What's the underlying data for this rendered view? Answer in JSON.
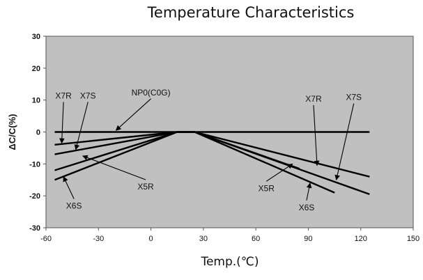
{
  "chart_data": {
    "type": "line",
    "title": "Temperature Characteristics",
    "xlabel": "Temp.(℃)",
    "ylabel": "ΔC/C(%)",
    "xlim": [
      -60,
      150
    ],
    "ylim": [
      -30,
      30
    ],
    "xticks": [
      "-60",
      "-30",
      "0",
      "30",
      "60",
      "90",
      "120",
      "150"
    ],
    "yticks": [
      "30",
      "20",
      "10",
      "0",
      "-10",
      "-20",
      "-30"
    ],
    "grid": false,
    "plot_background": "#c0c0c0",
    "line_color": "#000000",
    "series": [
      {
        "name": "NP0(C0G)",
        "points": [
          [
            -55,
            0
          ],
          [
            125,
            0
          ]
        ]
      },
      {
        "name": "X7R",
        "points": [
          [
            -55,
            -4
          ],
          [
            15,
            0
          ],
          [
            25,
            0
          ],
          [
            125,
            -14
          ]
        ]
      },
      {
        "name": "X7S",
        "points": [
          [
            -55,
            -7
          ],
          [
            15,
            0
          ],
          [
            25,
            0
          ],
          [
            125,
            -19.5
          ]
        ]
      },
      {
        "name": "X5R",
        "points": [
          [
            -55,
            -12
          ],
          [
            15,
            0
          ],
          [
            25,
            0
          ],
          [
            85,
            -11.5
          ]
        ]
      },
      {
        "name": "X6S",
        "points": [
          [
            -55,
            -15
          ],
          [
            15,
            0
          ],
          [
            25,
            0
          ],
          [
            105,
            -19
          ]
        ]
      }
    ],
    "annotations": [
      {
        "text": "X7R",
        "label_at": [
          -50,
          10.5
        ],
        "arrow_to": [
          -51,
          -3.5
        ]
      },
      {
        "text": "X7S",
        "label_at": [
          -36,
          10.5
        ],
        "arrow_to": [
          -43,
          -5.5
        ]
      },
      {
        "text": "NP0(C0G)",
        "label_at": [
          0,
          11.5
        ],
        "arrow_to": [
          -20,
          0.5
        ]
      },
      {
        "text": "X5R",
        "label_at": [
          -3,
          -18
        ],
        "arrow_to": [
          -39,
          -7.5
        ]
      },
      {
        "text": "X6S",
        "label_at": [
          -44,
          -24
        ],
        "arrow_to": [
          -50,
          -14
        ]
      },
      {
        "text": "X7R",
        "label_at": [
          93,
          9.5
        ],
        "arrow_to": [
          95,
          -10.5
        ]
      },
      {
        "text": "X7S",
        "label_at": [
          116,
          10
        ],
        "arrow_to": [
          106,
          -15
        ]
      },
      {
        "text": "X5R",
        "label_at": [
          66,
          -18.5
        ],
        "arrow_to": [
          81,
          -10
        ]
      },
      {
        "text": "X6S",
        "label_at": [
          89,
          -24.5
        ],
        "arrow_to": [
          91,
          -16
        ]
      }
    ]
  }
}
